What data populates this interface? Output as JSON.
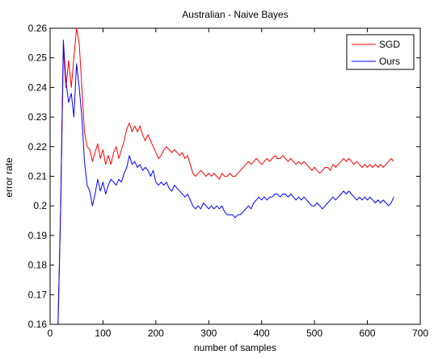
{
  "chart_data": {
    "type": "line",
    "title": "Australian - Naive Bayes",
    "xlabel": "number of samples",
    "ylabel": "error rate",
    "xlim": [
      0,
      700
    ],
    "ylim": [
      0.16,
      0.26
    ],
    "xticks": [
      0,
      100,
      200,
      300,
      400,
      500,
      600,
      700
    ],
    "yticks": [
      0.16,
      0.17,
      0.18,
      0.19,
      0.2,
      0.21,
      0.22,
      0.23,
      0.24,
      0.25,
      0.26
    ],
    "xtick_labels": [
      "0",
      "100",
      "200",
      "300",
      "400",
      "500",
      "600",
      "700"
    ],
    "ytick_labels": [
      "0.16",
      "0.17",
      "0.18",
      "0.19",
      "0.2",
      "0.21",
      "0.22",
      "0.23",
      "0.24",
      "0.25",
      "0.26"
    ],
    "grid": false,
    "legend_position": "top-right",
    "series": [
      {
        "name": "SGD",
        "color": "#ff0000",
        "x": [
          15,
          20,
          25,
          30,
          35,
          40,
          45,
          50,
          55,
          60,
          65,
          70,
          75,
          80,
          85,
          90,
          95,
          100,
          105,
          110,
          115,
          120,
          125,
          130,
          135,
          140,
          145,
          150,
          155,
          160,
          165,
          170,
          175,
          180,
          185,
          190,
          195,
          200,
          205,
          210,
          215,
          220,
          225,
          230,
          235,
          240,
          245,
          250,
          255,
          260,
          265,
          270,
          275,
          280,
          285,
          290,
          295,
          300,
          305,
          310,
          315,
          320,
          325,
          330,
          335,
          340,
          345,
          350,
          355,
          360,
          365,
          370,
          375,
          380,
          385,
          390,
          395,
          400,
          405,
          410,
          415,
          420,
          425,
          430,
          435,
          440,
          445,
          450,
          455,
          460,
          465,
          470,
          475,
          480,
          485,
          490,
          495,
          500,
          505,
          510,
          515,
          520,
          525,
          530,
          535,
          540,
          545,
          550,
          555,
          560,
          565,
          570,
          575,
          580,
          585,
          590,
          595,
          600,
          605,
          610,
          615,
          620,
          625,
          630,
          635,
          640,
          645,
          650
        ],
        "y": [
          0.16,
          0.2,
          0.253,
          0.24,
          0.249,
          0.24,
          0.25,
          0.26,
          0.255,
          0.24,
          0.225,
          0.22,
          0.219,
          0.215,
          0.218,
          0.221,
          0.216,
          0.219,
          0.214,
          0.217,
          0.214,
          0.218,
          0.22,
          0.216,
          0.219,
          0.222,
          0.226,
          0.228,
          0.225,
          0.227,
          0.225,
          0.227,
          0.224,
          0.222,
          0.224,
          0.222,
          0.22,
          0.218,
          0.216,
          0.217,
          0.219,
          0.22,
          0.219,
          0.218,
          0.219,
          0.218,
          0.217,
          0.218,
          0.216,
          0.217,
          0.214,
          0.211,
          0.21,
          0.211,
          0.212,
          0.211,
          0.21,
          0.211,
          0.21,
          0.211,
          0.21,
          0.209,
          0.211,
          0.21,
          0.21,
          0.211,
          0.21,
          0.21,
          0.211,
          0.212,
          0.213,
          0.214,
          0.215,
          0.214,
          0.215,
          0.216,
          0.215,
          0.214,
          0.215,
          0.216,
          0.215,
          0.216,
          0.217,
          0.216,
          0.216,
          0.217,
          0.216,
          0.215,
          0.216,
          0.215,
          0.214,
          0.215,
          0.214,
          0.215,
          0.214,
          0.213,
          0.212,
          0.213,
          0.212,
          0.211,
          0.212,
          0.213,
          0.213,
          0.212,
          0.214,
          0.213,
          0.214,
          0.215,
          0.216,
          0.215,
          0.216,
          0.215,
          0.214,
          0.215,
          0.214,
          0.213,
          0.214,
          0.213,
          0.214,
          0.213,
          0.214,
          0.213,
          0.214,
          0.213,
          0.214,
          0.215,
          0.216,
          0.215
        ]
      },
      {
        "name": "Ours",
        "color": "#0000ff",
        "x": [
          15,
          20,
          25,
          30,
          35,
          40,
          45,
          50,
          55,
          60,
          65,
          70,
          75,
          80,
          85,
          90,
          95,
          100,
          105,
          110,
          115,
          120,
          125,
          130,
          135,
          140,
          145,
          150,
          155,
          160,
          165,
          170,
          175,
          180,
          185,
          190,
          195,
          200,
          205,
          210,
          215,
          220,
          225,
          230,
          235,
          240,
          245,
          250,
          255,
          260,
          265,
          270,
          275,
          280,
          285,
          290,
          295,
          300,
          305,
          310,
          315,
          320,
          325,
          330,
          335,
          340,
          345,
          350,
          355,
          360,
          365,
          370,
          375,
          380,
          385,
          390,
          395,
          400,
          405,
          410,
          415,
          420,
          425,
          430,
          435,
          440,
          445,
          450,
          455,
          460,
          465,
          470,
          475,
          480,
          485,
          490,
          495,
          500,
          505,
          510,
          515,
          520,
          525,
          530,
          535,
          540,
          545,
          550,
          555,
          560,
          565,
          570,
          575,
          580,
          585,
          590,
          595,
          600,
          605,
          610,
          615,
          620,
          625,
          630,
          635,
          640,
          645,
          650
        ],
        "y": [
          0.16,
          0.2,
          0.256,
          0.242,
          0.235,
          0.238,
          0.23,
          0.248,
          0.24,
          0.23,
          0.215,
          0.207,
          0.205,
          0.2,
          0.204,
          0.209,
          0.205,
          0.208,
          0.204,
          0.207,
          0.209,
          0.208,
          0.207,
          0.209,
          0.208,
          0.211,
          0.213,
          0.217,
          0.214,
          0.215,
          0.213,
          0.214,
          0.212,
          0.213,
          0.212,
          0.21,
          0.212,
          0.208,
          0.207,
          0.208,
          0.207,
          0.208,
          0.206,
          0.205,
          0.207,
          0.206,
          0.205,
          0.204,
          0.203,
          0.204,
          0.202,
          0.2,
          0.199,
          0.2,
          0.199,
          0.201,
          0.2,
          0.199,
          0.2,
          0.199,
          0.2,
          0.199,
          0.2,
          0.198,
          0.197,
          0.197,
          0.197,
          0.196,
          0.197,
          0.197,
          0.198,
          0.199,
          0.2,
          0.199,
          0.201,
          0.202,
          0.203,
          0.202,
          0.203,
          0.202,
          0.203,
          0.203,
          0.204,
          0.204,
          0.203,
          0.204,
          0.204,
          0.203,
          0.204,
          0.203,
          0.202,
          0.203,
          0.202,
          0.203,
          0.202,
          0.201,
          0.2,
          0.2,
          0.201,
          0.2,
          0.199,
          0.2,
          0.201,
          0.202,
          0.203,
          0.202,
          0.203,
          0.204,
          0.205,
          0.204,
          0.205,
          0.204,
          0.203,
          0.202,
          0.203,
          0.202,
          0.203,
          0.202,
          0.203,
          0.202,
          0.201,
          0.202,
          0.201,
          0.202,
          0.201,
          0.2,
          0.201,
          0.203
        ]
      }
    ]
  }
}
